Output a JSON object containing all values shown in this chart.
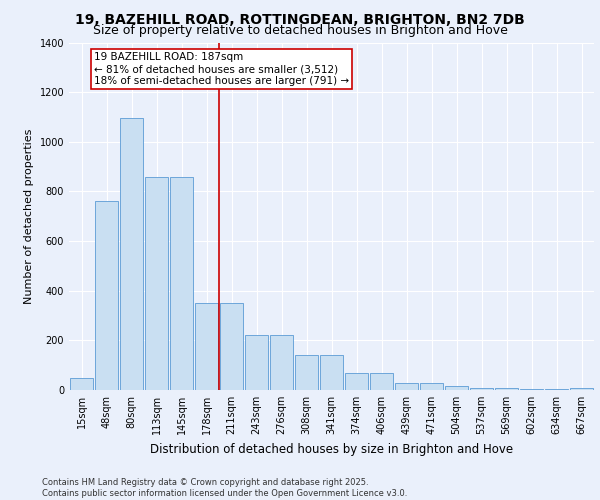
{
  "title1": "19, BAZEHILL ROAD, ROTTINGDEAN, BRIGHTON, BN2 7DB",
  "title2": "Size of property relative to detached houses in Brighton and Hove",
  "xlabel": "Distribution of detached houses by size in Brighton and Hove",
  "ylabel": "Number of detached properties",
  "categories": [
    "15sqm",
    "48sqm",
    "80sqm",
    "113sqm",
    "145sqm",
    "178sqm",
    "211sqm",
    "243sqm",
    "276sqm",
    "308sqm",
    "341sqm",
    "374sqm",
    "406sqm",
    "439sqm",
    "471sqm",
    "504sqm",
    "537sqm",
    "569sqm",
    "602sqm",
    "634sqm",
    "667sqm"
  ],
  "values": [
    50,
    760,
    1095,
    860,
    860,
    350,
    350,
    220,
    220,
    140,
    140,
    70,
    70,
    28,
    28,
    15,
    10,
    8,
    5,
    3,
    8
  ],
  "bar_color": "#c9dff2",
  "bar_edge_color": "#5b9bd5",
  "vline_color": "#cc0000",
  "vline_position": 5.5,
  "annotation_text": "19 BAZEHILL ROAD: 187sqm\n← 81% of detached houses are smaller (3,512)\n18% of semi-detached houses are larger (791) →",
  "annotation_box_color": "#cc0000",
  "ylim": [
    0,
    1400
  ],
  "yticks": [
    0,
    200,
    400,
    600,
    800,
    1000,
    1200,
    1400
  ],
  "bg_color": "#eaf0fb",
  "grid_color": "#ffffff",
  "footnote": "Contains HM Land Registry data © Crown copyright and database right 2025.\nContains public sector information licensed under the Open Government Licence v3.0.",
  "title1_fontsize": 10,
  "title2_fontsize": 9,
  "xlabel_fontsize": 8.5,
  "ylabel_fontsize": 8,
  "tick_fontsize": 7,
  "annot_fontsize": 7.5,
  "footnote_fontsize": 6
}
